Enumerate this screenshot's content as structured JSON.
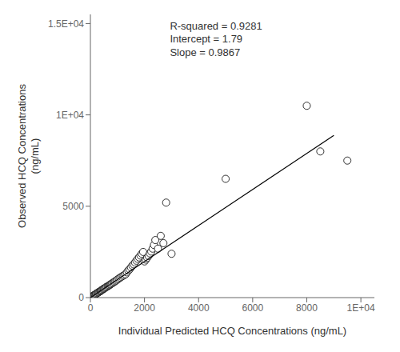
{
  "chart_data": {
    "type": "scatter",
    "xlabel": "Individual Predicted HCQ Concentrations (ng/mL)",
    "ylabel": "Observed HCQ Concentrations\n(ng/mL)",
    "annotation": "R-squared = 0.9281\nIntercept = 1.79\nSlope = 0.9867",
    "xlim": [
      0,
      10500
    ],
    "ylim": [
      0,
      15500
    ],
    "xticks": [
      0,
      2000,
      4000,
      6000,
      8000,
      {
        "value": 10000,
        "label": "1E+04"
      }
    ],
    "yticks": [
      0,
      5000,
      {
        "value": 10000,
        "label": "1E+04"
      },
      {
        "value": 15000,
        "label": "1.5E+04"
      }
    ],
    "grid": false,
    "series": [
      {
        "type": "scatter",
        "color": "black",
        "marker": "open_circle",
        "x": [
          5,
          8,
          10,
          12,
          15,
          18,
          20,
          25,
          30,
          35,
          40,
          50,
          60,
          70,
          80,
          90,
          100,
          110,
          130,
          150,
          170,
          200,
          220,
          250,
          280,
          300,
          330,
          360,
          380,
          400,
          430,
          460,
          490,
          510,
          540,
          570,
          600,
          640,
          670,
          700,
          730,
          760,
          800,
          840,
          880,
          920,
          960,
          1000,
          1050,
          1100,
          1150,
          1200,
          1250,
          1300,
          1350,
          1400,
          1450,
          1500,
          1550,
          1600,
          1650,
          1700,
          1750,
          1800,
          1850,
          1900,
          1950,
          2000,
          2050,
          2100,
          2150,
          2200,
          2250,
          2300,
          2350,
          2400,
          2500,
          2600,
          2700,
          2800,
          3000,
          5000,
          8000,
          8500,
          9500
        ],
        "values": [
          3,
          5,
          8,
          10,
          12,
          15,
          18,
          22,
          28,
          33,
          38,
          48,
          58,
          66,
          75,
          85,
          95,
          105,
          125,
          145,
          165,
          195,
          215,
          245,
          275,
          290,
          320,
          350,
          370,
          390,
          420,
          450,
          480,
          500,
          530,
          560,
          590,
          620,
          650,
          680,
          710,
          740,
          780,
          820,
          860,
          900,
          940,
          990,
          1040,
          1090,
          1140,
          1190,
          1230,
          1280,
          1380,
          1480,
          1550,
          1650,
          1750,
          1820,
          1920,
          2020,
          2120,
          2200,
          2300,
          2400,
          2500,
          1980,
          2080,
          2180,
          2280,
          2420,
          2520,
          2680,
          2880,
          3150,
          2680,
          3380,
          2980,
          5200,
          2400,
          6500,
          10500,
          8000,
          7500
        ]
      },
      {
        "type": "line",
        "color": "black",
        "line_style": "solid",
        "x": [
          0,
          9000
        ],
        "values": [
          1.79,
          8882.09
        ]
      }
    ]
  }
}
